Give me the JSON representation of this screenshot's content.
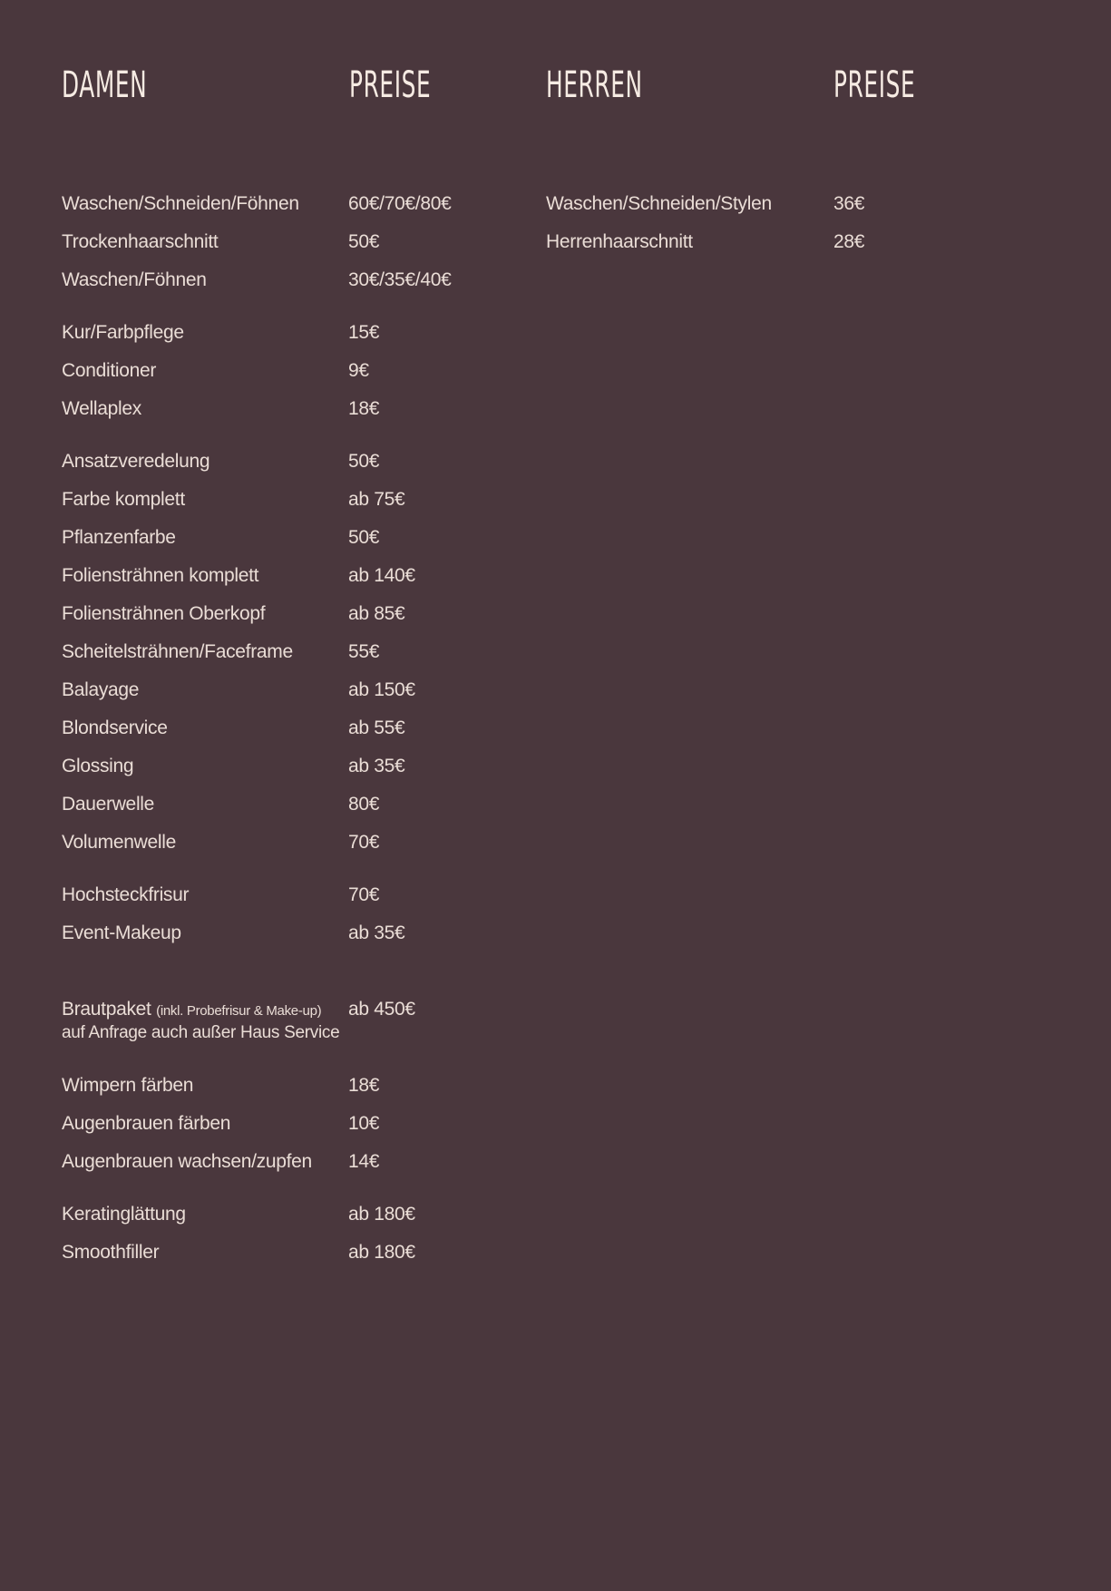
{
  "headers": {
    "damen": "DAMEN",
    "preise_left": "PREISE",
    "herren": "HERREN",
    "preise_right": "PREISE"
  },
  "damen": [
    [
      {
        "name": "Waschen/Schneiden/Föhnen",
        "price": "60€/70€/80€"
      },
      {
        "name": "Trockenhaarschnitt",
        "price": "50€"
      },
      {
        "name": "Waschen/Föhnen",
        "price": "30€/35€/40€"
      }
    ],
    [
      {
        "name": "Kur/Farbpflege",
        "price": "15€"
      },
      {
        "name": "Conditioner",
        "price": "9€"
      },
      {
        "name": "Wellaplex",
        "price": "18€"
      }
    ],
    [
      {
        "name": "Ansatzveredelung",
        "price": "50€"
      },
      {
        "name": "Farbe komplett",
        "price": "ab 75€"
      },
      {
        "name": "Pflanzenfarbe",
        "price": "50€"
      },
      {
        "name": "Foliensträhnen komplett",
        "price": "ab 140€"
      },
      {
        "name": "Foliensträhnen Oberkopf",
        "price": "ab 85€"
      },
      {
        "name": "Scheitelsträhnen/Faceframe",
        "price": "55€"
      },
      {
        "name": "Balayage",
        "price": "ab 150€"
      },
      {
        "name": "Blondservice",
        "price": "ab 55€"
      },
      {
        "name": "Glossing",
        "price": "ab 35€"
      },
      {
        "name": "Dauerwelle",
        "price": "80€"
      },
      {
        "name": "Volumenwelle",
        "price": "70€"
      }
    ],
    [
      {
        "name": "Hochsteckfrisur",
        "price": "70€"
      },
      {
        "name": "Event-Makeup",
        "price": "ab 35€"
      }
    ],
    [
      {
        "name": "Brautpaket",
        "note": "(inkl. Probefrisur & Make-up)",
        "sub": "auf Anfrage auch außer Haus Service",
        "price": "ab 450€"
      }
    ],
    [
      {
        "name": "Wimpern färben",
        "price": "18€"
      },
      {
        "name": "Augenbrauen färben",
        "price": "10€"
      },
      {
        "name": "Augenbrauen wachsen/zupfen",
        "price": "14€"
      }
    ],
    [
      {
        "name": "Keratinglättung",
        "price": "ab 180€"
      },
      {
        "name": "Smoothfiller",
        "price": "ab 180€"
      }
    ]
  ],
  "herren": [
    [
      {
        "name": "Waschen/Schneiden/Stylen",
        "price": "36€"
      },
      {
        "name": "Herrenhaarschnitt",
        "price": "28€"
      }
    ]
  ],
  "colors": {
    "background": "#4a373d",
    "text": "#eaddd6",
    "heading": "#f6ebe3"
  }
}
